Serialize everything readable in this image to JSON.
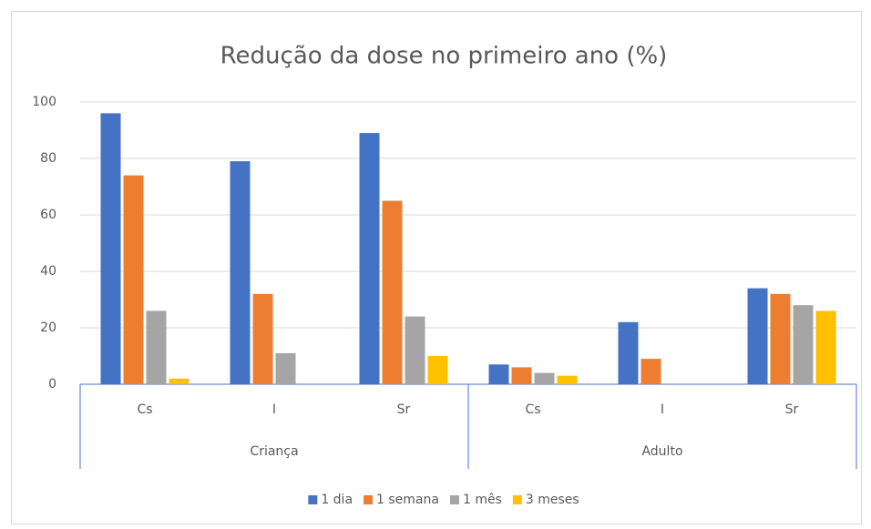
{
  "chart_data": {
    "type": "bar",
    "title": "Redução da dose no primeiro ano (%)",
    "categories": [
      "Cs",
      "I",
      "Sr",
      "Cs",
      "I",
      "Sr"
    ],
    "category_groups": [
      "Criança",
      "Criança",
      "Criança",
      "Adulto",
      "Adulto",
      "Adulto"
    ],
    "series": [
      {
        "name": "1 dia",
        "color": "#4472c4",
        "values": [
          96,
          79,
          89,
          7,
          22,
          34
        ]
      },
      {
        "name": "1 semana",
        "color": "#ed7d31",
        "values": [
          74,
          32,
          65,
          6,
          9,
          32
        ]
      },
      {
        "name": "1 mês",
        "color": "#a5a5a5",
        "values": [
          26,
          11,
          24,
          4,
          0,
          28
        ]
      },
      {
        "name": "3 meses",
        "color": "#ffc000",
        "values": [
          2,
          0,
          10,
          3,
          0,
          26
        ]
      }
    ],
    "ylim": [
      0,
      100
    ],
    "yticks": [
      0,
      20,
      40,
      60,
      80,
      100
    ],
    "grid": true,
    "legend": "bottom"
  }
}
